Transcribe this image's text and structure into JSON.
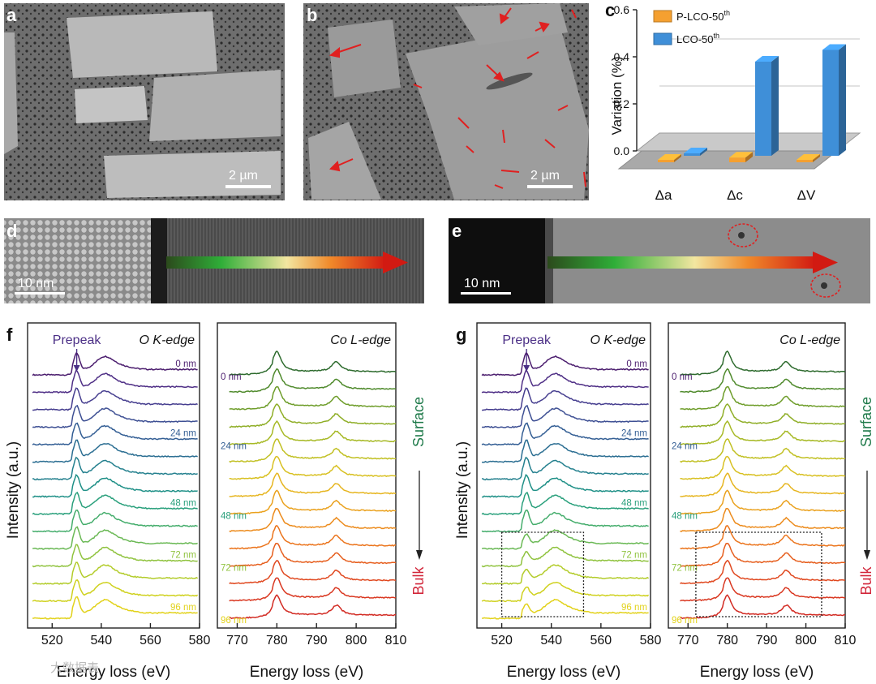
{
  "panels": {
    "a": {
      "letter": "a",
      "scale": "2 µm"
    },
    "b": {
      "letter": "b",
      "scale": "2 µm"
    },
    "d": {
      "letter": "d",
      "scale": "10 nm"
    },
    "e": {
      "letter": "e",
      "scale": "10 nm"
    },
    "f": {
      "letter": "f"
    },
    "g": {
      "letter": "g"
    }
  },
  "chart_c": {
    "letter": "c",
    "type": "bar",
    "ylabel": "Variation (%)",
    "categories": [
      "Δa",
      "Δc",
      "ΔV"
    ],
    "series": [
      {
        "name": "P-LCO-50",
        "sup": "th",
        "color": "#f5a030",
        "values": [
          0.0,
          0.02,
          0.01
        ]
      },
      {
        "name": "LCO-50",
        "sup": "th",
        "color": "#3f8fd8",
        "values": [
          0.01,
          0.4,
          0.45
        ]
      }
    ],
    "ylim": [
      0.0,
      0.6
    ],
    "yticks": [
      "0.0",
      "0.2",
      "0.4",
      "0.6"
    ]
  },
  "spectra": {
    "prepeak": "Prepeak",
    "o_edge": "O K-edge",
    "co_edge": "Co L-edge",
    "ylabel": "Intensity (a.u.)",
    "xlabel": "Energy loss (eV)",
    "o_ticks": [
      "520",
      "540",
      "560",
      "580"
    ],
    "co_ticks": [
      "770",
      "780",
      "790",
      "800",
      "810"
    ],
    "depth_labels": [
      "0 nm",
      "24 nm",
      "48 nm",
      "72 nm",
      "96 nm"
    ],
    "surface": "Surface",
    "bulk": "Bulk",
    "colors": [
      "#4b1d6e",
      "#4f2f86",
      "#463e8f",
      "#3d4f93",
      "#335e94",
      "#2b6e92",
      "#24808e",
      "#1f9087",
      "#2aa07c",
      "#45ad6c",
      "#6bb956",
      "#90c33f",
      "#b3cc2b",
      "#cfd11e",
      "#e2d21b"
    ],
    "co_colors": [
      "#2e6b2e",
      "#4f8a2c",
      "#6e9d2a",
      "#8fae27",
      "#a7b925",
      "#c1c023",
      "#d8c021",
      "#e6b51f",
      "#eaa11d",
      "#ec8b1c",
      "#eb741c",
      "#e65e1d",
      "#e0481f",
      "#d93720",
      "#d22a22"
    ]
  },
  "watermark": "大数据表"
}
